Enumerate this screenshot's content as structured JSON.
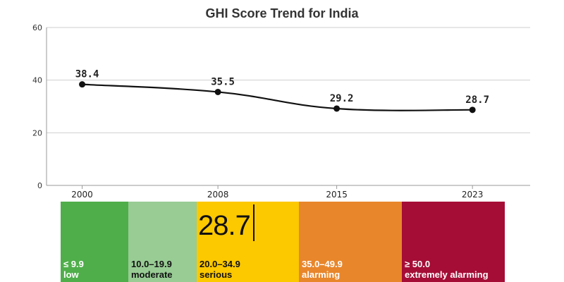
{
  "chart_data": {
    "type": "line",
    "title": "GHI Score Trend for India",
    "xlabel": "",
    "ylabel": "",
    "categories": [
      "2000",
      "2008",
      "2015",
      "2023"
    ],
    "x": [
      2000,
      2008,
      2015,
      2023
    ],
    "values": [
      38.4,
      35.5,
      29.2,
      28.7
    ],
    "data_labels": [
      "38.4",
      "35.5",
      "29.2",
      "28.7"
    ],
    "ylim": [
      0,
      60
    ],
    "yticks": [
      "0",
      "20",
      "40",
      "60"
    ],
    "grid": true,
    "line_color": "#111111"
  },
  "severity_scale": {
    "current_value": "28.7",
    "bands": [
      {
        "range": "≤ 9.9",
        "name": "low",
        "color": "#4fae4a",
        "text_color": "#ffffff"
      },
      {
        "range": "10.0–19.9",
        "name": "moderate",
        "color": "#98cc94",
        "text_color": "#111111"
      },
      {
        "range": "20.0–34.9",
        "name": "serious",
        "color": "#fcc800",
        "text_color": "#111111"
      },
      {
        "range": "35.0–49.9",
        "name": "alarming",
        "color": "#e8862b",
        "text_color": "#ffffff"
      },
      {
        "range": "≥ 50.0",
        "name": "extremely alarming",
        "color": "#a50d36",
        "text_color": "#ffffff"
      }
    ]
  }
}
